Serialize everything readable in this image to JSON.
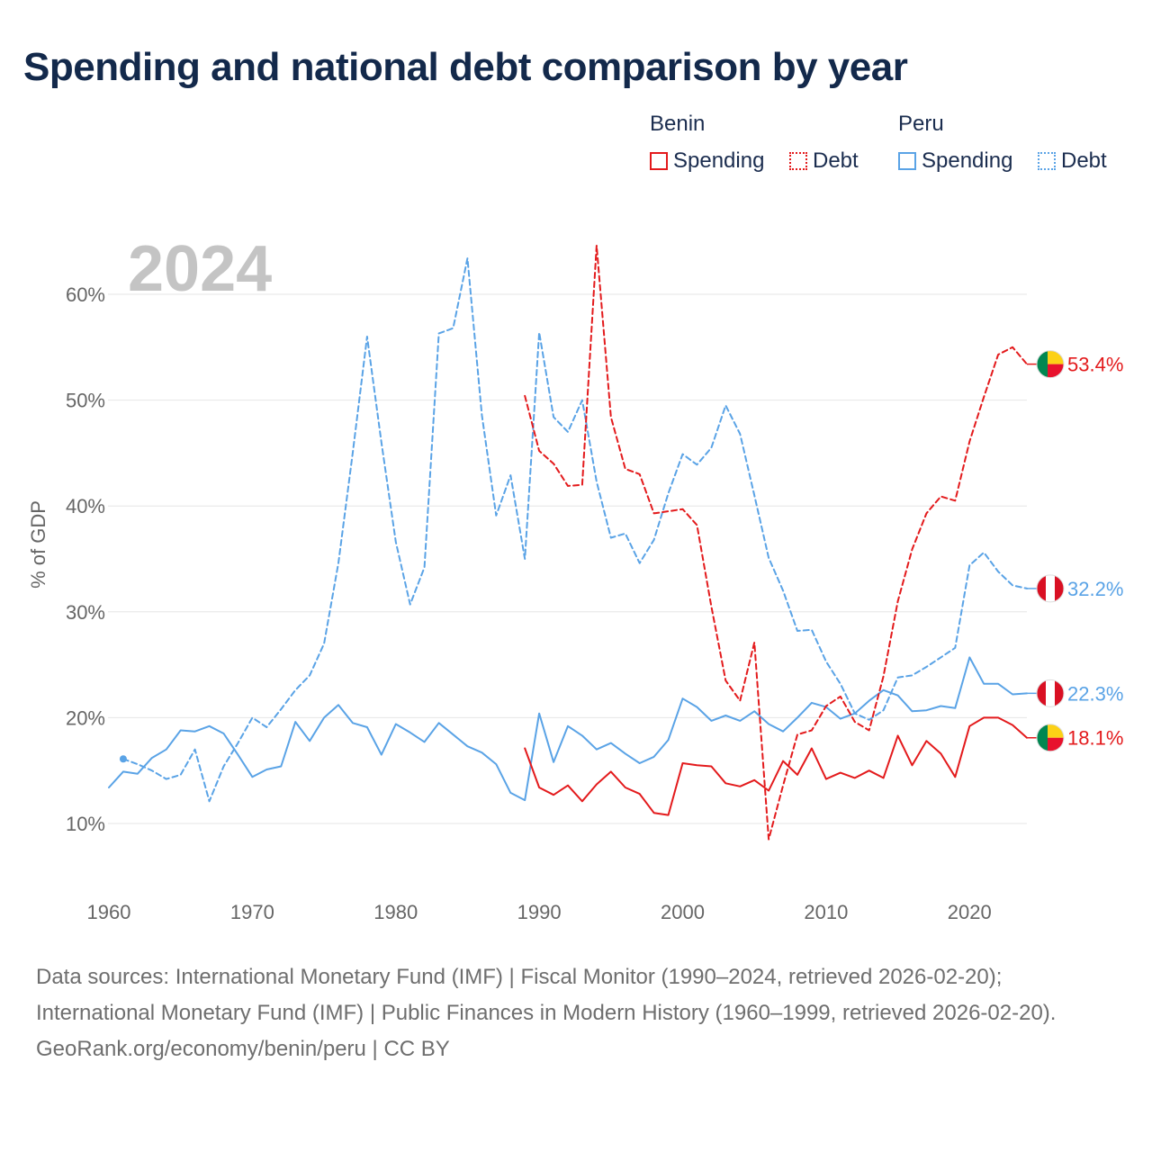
{
  "title": "Spending and national debt comparison by year",
  "legend": {
    "benin": "Benin",
    "peru": "Peru",
    "spending": "Spending",
    "debt": "Debt"
  },
  "colors": {
    "benin": "#e31a1c",
    "peru": "#5aa3e6",
    "grid": "#e6e6e6",
    "tick": "#666666",
    "year": "#c4c4c4"
  },
  "chart_data": {
    "type": "line",
    "title": "Spending and national debt comparison by year",
    "watermark_year": "2024",
    "ylabel": "% of GDP",
    "xlabel": "",
    "xlim": [
      1960,
      2024
    ],
    "ylim": [
      3.5,
      70
    ],
    "x_ticks": [
      1960,
      1970,
      1980,
      1990,
      2000,
      2010,
      2020
    ],
    "y_ticks": [
      10,
      20,
      30,
      40,
      50,
      60
    ],
    "y_tick_labels": [
      "10%",
      "20%",
      "30%",
      "40%",
      "50%",
      "60%"
    ],
    "series": [
      {
        "name": "Peru Debt",
        "country": "Peru",
        "measure": "Debt",
        "style": "dashed",
        "color": "#5aa3e6",
        "x": [
          1961,
          1962,
          1963,
          1964,
          1965,
          1966,
          1967,
          1968,
          1969,
          1970,
          1971,
          1972,
          1973,
          1974,
          1975,
          1976,
          1977,
          1978,
          1979,
          1980,
          1981,
          1982,
          1983,
          1984,
          1985,
          1986,
          1987,
          1988,
          1989,
          1990,
          1991,
          1992,
          1993,
          1994,
          1995,
          1996,
          1997,
          1998,
          1999,
          2000,
          2001,
          2002,
          2003,
          2004,
          2005,
          2006,
          2007,
          2008,
          2009,
          2010,
          2011,
          2012,
          2013,
          2014,
          2015,
          2016,
          2017,
          2018,
          2019,
          2020,
          2021,
          2022,
          2023,
          2024
        ],
        "values": [
          16.1,
          15.6,
          15.0,
          14.2,
          14.6,
          17.0,
          12.1,
          15.4,
          17.6,
          20.0,
          19.1,
          20.8,
          22.6,
          24.0,
          27.0,
          34.6,
          45.0,
          56.0,
          46.0,
          36.6,
          30.7,
          34.2,
          56.3,
          56.8,
          63.4,
          48.6,
          39.1,
          42.9,
          35.0,
          56.4,
          48.4,
          47.0,
          50.0,
          42.3,
          37.0,
          37.4,
          34.6,
          36.8,
          41.2,
          44.9,
          43.9,
          45.5,
          49.5,
          46.8,
          41.0,
          35.1,
          32.0,
          28.2,
          28.3,
          25.3,
          23.2,
          20.4,
          19.8,
          20.7,
          23.8,
          24.0,
          24.8,
          25.7,
          26.6,
          34.4,
          35.6,
          33.8,
          32.5,
          32.2
        ]
      },
      {
        "name": "Peru Spending",
        "country": "Peru",
        "measure": "Spending",
        "style": "solid",
        "color": "#5aa3e6",
        "x": [
          1960,
          1961,
          1962,
          1963,
          1964,
          1965,
          1966,
          1967,
          1968,
          1969,
          1970,
          1971,
          1972,
          1973,
          1974,
          1975,
          1976,
          1977,
          1978,
          1979,
          1980,
          1981,
          1982,
          1983,
          1984,
          1985,
          1986,
          1987,
          1988,
          1989,
          1990,
          1991,
          1992,
          1993,
          1994,
          1995,
          1996,
          1997,
          1998,
          1999,
          2000,
          2001,
          2002,
          2003,
          2004,
          2005,
          2006,
          2007,
          2008,
          2009,
          2010,
          2011,
          2012,
          2013,
          2014,
          2015,
          2016,
          2017,
          2018,
          2019,
          2020,
          2021,
          2022,
          2023,
          2024
        ],
        "values": [
          13.4,
          14.9,
          14.7,
          16.2,
          17.0,
          18.8,
          18.7,
          19.2,
          18.5,
          16.5,
          14.4,
          15.1,
          15.4,
          19.6,
          17.8,
          20.0,
          21.2,
          19.5,
          19.1,
          16.5,
          19.4,
          18.6,
          17.7,
          19.5,
          18.4,
          17.3,
          16.7,
          15.6,
          12.9,
          12.2,
          20.4,
          15.8,
          19.2,
          18.3,
          17.0,
          17.6,
          16.6,
          15.7,
          16.3,
          17.9,
          21.8,
          21.0,
          19.7,
          20.2,
          19.7,
          20.6,
          19.4,
          18.7,
          20.0,
          21.4,
          21.0,
          19.9,
          20.4,
          21.6,
          22.6,
          22.1,
          20.6,
          20.7,
          21.1,
          20.9,
          25.7,
          23.2,
          23.2,
          22.2,
          22.3
        ]
      },
      {
        "name": "Benin Debt",
        "country": "Benin",
        "measure": "Debt",
        "style": "dashed",
        "color": "#e31a1c",
        "x": [
          1989,
          1990,
          1991,
          1992,
          1993,
          1994,
          1995,
          1996,
          1997,
          1998,
          1999,
          2000,
          2001,
          2002,
          2003,
          2004,
          2005,
          2006,
          2007,
          2008,
          2009,
          2010,
          2011,
          2012,
          2013,
          2014,
          2015,
          2016,
          2017,
          2018,
          2019,
          2020,
          2021,
          2022,
          2023,
          2024
        ],
        "values": [
          50.4,
          45.2,
          44.0,
          41.9,
          42.0,
          64.6,
          48.4,
          43.5,
          43.0,
          39.3,
          39.5,
          39.7,
          38.2,
          30.5,
          23.5,
          21.6,
          27.1,
          8.5,
          13.6,
          18.4,
          18.8,
          21.1,
          22.0,
          19.6,
          18.8,
          23.9,
          31.0,
          35.9,
          39.3,
          40.9,
          40.5,
          46.1,
          50.3,
          54.3,
          55.0,
          53.4
        ]
      },
      {
        "name": "Benin Spending",
        "country": "Benin",
        "measure": "Spending",
        "style": "solid",
        "color": "#e31a1c",
        "x": [
          1989,
          1990,
          1991,
          1992,
          1993,
          1994,
          1995,
          1996,
          1997,
          1998,
          1999,
          2000,
          2001,
          2002,
          2003,
          2004,
          2005,
          2006,
          2007,
          2008,
          2009,
          2010,
          2011,
          2012,
          2013,
          2014,
          2015,
          2016,
          2017,
          2018,
          2019,
          2020,
          2021,
          2022,
          2023,
          2024
        ],
        "values": [
          17.1,
          13.4,
          12.7,
          13.6,
          12.1,
          13.7,
          14.9,
          13.4,
          12.8,
          11.0,
          10.8,
          15.7,
          15.5,
          15.4,
          13.8,
          13.5,
          14.1,
          13.1,
          15.9,
          14.6,
          17.1,
          14.2,
          14.8,
          14.3,
          15.0,
          14.3,
          18.3,
          15.5,
          17.8,
          16.6,
          14.4,
          19.2,
          20.0,
          20.0,
          19.3,
          18.1
        ]
      }
    ],
    "end_labels": [
      {
        "series": "Benin Debt",
        "text": "53.4%",
        "value": 53.4,
        "flag": "benin"
      },
      {
        "series": "Peru Debt",
        "text": "32.2%",
        "value": 32.2,
        "flag": "peru"
      },
      {
        "series": "Peru Spending",
        "text": "22.3%",
        "value": 22.3,
        "flag": "peru"
      },
      {
        "series": "Benin Spending",
        "text": "18.1%",
        "value": 18.1,
        "flag": "benin"
      }
    ]
  },
  "footer": {
    "sources": "Data sources: International Monetary Fund (IMF) | Fiscal Monitor (1990–2024, retrieved 2026-02-20); International Monetary Fund (IMF) | Public Finances in Modern History (1960–1999, retrieved 2026-02-20).",
    "credit": "GeoRank.org/economy/benin/peru | CC BY"
  }
}
